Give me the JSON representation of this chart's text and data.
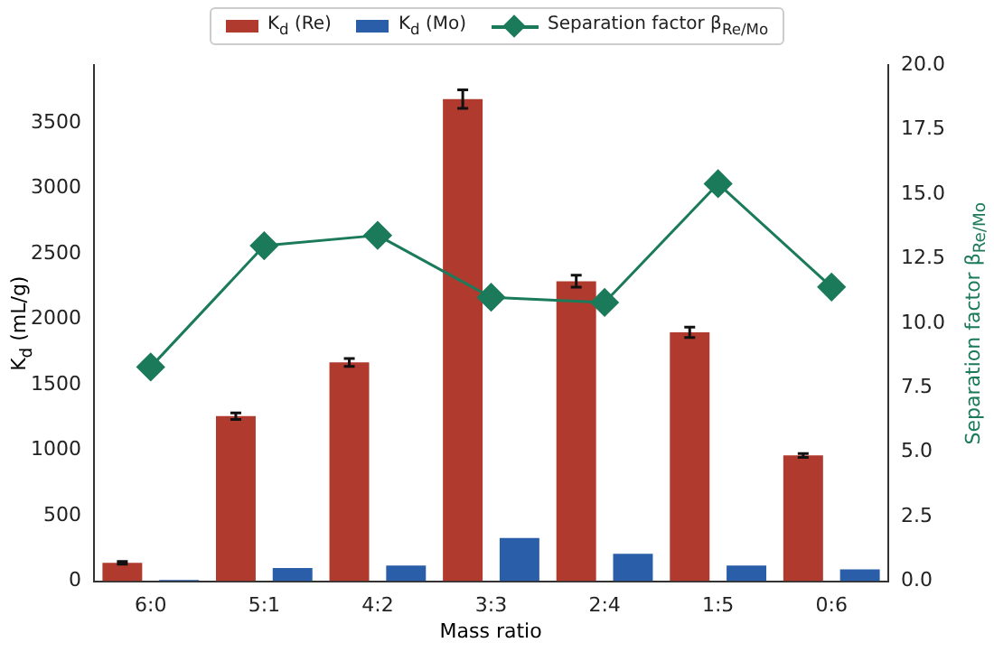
{
  "chart_data": {
    "type": "bar",
    "xlabel": "Mass ratio",
    "ylabel": "K$_{d}$ (mL/g)",
    "y2label": "Separation factor β$_{Re/Mo}$",
    "categories": [
      "6:0",
      "5:1",
      "4:2",
      "3:3",
      "2:4",
      "1:5",
      "0:6"
    ],
    "series": [
      {
        "name": "K$_{d}$ (Re)",
        "color": "#b03a2e",
        "values": [
          140,
          1260,
          1670,
          3680,
          2290,
          1900,
          960
        ],
        "errors": [
          10,
          25,
          30,
          70,
          45,
          40,
          15
        ]
      },
      {
        "name": "K$_{d}$ (Mo)",
        "color": "#2b5ea8",
        "values": [
          10,
          100,
          120,
          330,
          210,
          120,
          90
        ]
      },
      {
        "name": "Separation factor β$_{Re/Mo}$",
        "type": "line",
        "axis": "y2",
        "color": "#1b7a5a",
        "marker": "diamond",
        "values": [
          8.3,
          13.0,
          13.4,
          11.0,
          10.8,
          15.4,
          11.4
        ]
      }
    ],
    "ylim": [
      0,
      3940
    ],
    "yticks": [
      0,
      500,
      1000,
      1500,
      2000,
      2500,
      3000,
      3500
    ],
    "y2lim": [
      0,
      20
    ],
    "y2ticks": [
      {
        "value": 0,
        "label": "0.0"
      },
      {
        "value": 2.5,
        "label": "2.5"
      },
      {
        "value": 5,
        "label": "5.0"
      },
      {
        "value": 7.5,
        "label": "7.5"
      },
      {
        "value": 10,
        "label": "10.0"
      },
      {
        "value": 12.5,
        "label": "12.5"
      },
      {
        "value": 15,
        "label": "15.0"
      },
      {
        "value": 17.5,
        "label": "17.5"
      },
      {
        "value": 20,
        "label": "20.0"
      }
    ],
    "grid": false,
    "legend": "top"
  }
}
